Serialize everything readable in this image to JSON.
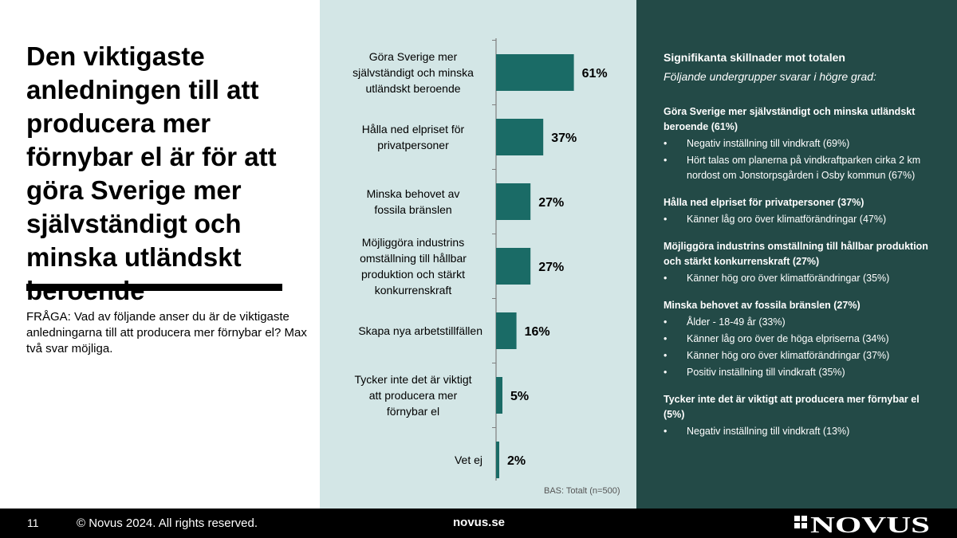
{
  "slide": {
    "title": "Den viktigaste anledningen till att producera mer förnybar el är för att göra Sverige mer självständigt och minska utländskt beroende",
    "question": "FRÅGA: Vad av följande anser du är de viktigaste anledningarna till att producera mer förnybar el? Max två svar möjliga."
  },
  "chart_data": {
    "type": "bar",
    "orientation": "horizontal",
    "categories": [
      [
        "Göra Sverige mer",
        "självständigt och minska",
        "utländskt beroende"
      ],
      [
        "Hålla ned elpriset för",
        "privatpersoner"
      ],
      [
        "Minska behovet av",
        "fossila bränslen"
      ],
      [
        "Möjliggöra industrins",
        "omställning till hållbar",
        "produktion och stärkt",
        "konkurrenskraft"
      ],
      [
        "Skapa nya arbetstillfällen"
      ],
      [
        "Tycker inte det är viktigt",
        "att producera mer",
        "förnybar el"
      ],
      [
        "Vet ej"
      ]
    ],
    "values": [
      61,
      37,
      27,
      27,
      16,
      5,
      2
    ],
    "value_labels": [
      "61%",
      "37%",
      "27%",
      "27%",
      "16%",
      "5%",
      "2%"
    ],
    "bar_color": "#1a6b66",
    "basis": "BAS: Totalt (n=500)"
  },
  "significance": {
    "title": "Signifikanta skillnader mot totalen",
    "subtitle": "Följande undergrupper svarar i högre grad:",
    "groups": [
      {
        "heading": "Göra Sverige mer självständigt och minska utländskt beroende (61%)",
        "items": [
          "Negativ inställning till vindkraft (69%)",
          "Hört talas om planerna på vindkraftparken cirka 2 km nordost om Jonstorpsgården i Osby kommun (67%)"
        ]
      },
      {
        "heading": "Hålla ned elpriset för privatpersoner (37%)",
        "items": [
          "Känner låg oro över klimatförändringar (47%)"
        ]
      },
      {
        "heading": "Möjliggöra industrins omställning till hållbar produktion och stärkt konkurrenskraft (27%)",
        "items": [
          "Känner hög oro över klimatförändringar (35%)"
        ]
      },
      {
        "heading": "Minska behovet av fossila bränslen (27%)",
        "items": [
          "Ålder - 18-49 år (33%)",
          "Känner låg oro över de höga elpriserna (34%)",
          "Känner hög oro över klimatförändringar (37%)",
          "Positiv inställning till vindkraft (35%)"
        ]
      },
      {
        "heading": "Tycker inte det är viktigt att producera mer förnybar el (5%)",
        "items": [
          "Negativ inställning till vindkraft (13%)"
        ]
      }
    ]
  },
  "footer": {
    "page_number": "11",
    "copyright": "© Novus 2024. All rights reserved.",
    "url": "novus.se",
    "logo_text": "NOVUS"
  },
  "colors": {
    "panel_middle": "#d3e6e6",
    "panel_right": "#234a47",
    "bar": "#1a6b66",
    "footer": "#000000"
  }
}
